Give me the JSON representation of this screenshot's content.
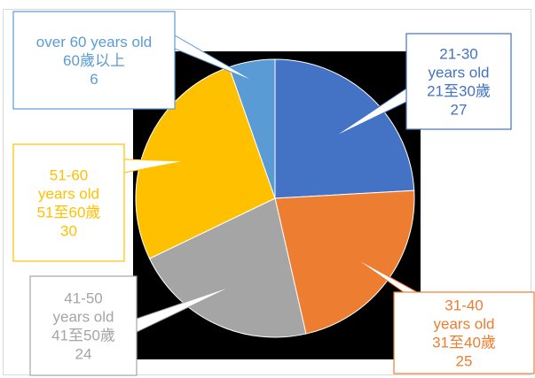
{
  "chart_data": {
    "type": "pie",
    "title": "",
    "start_angle_deg": 0,
    "direction": "clockwise",
    "slices": [
      {
        "label_lines": [
          "21-30",
          "years old",
          "21至30歲"
        ],
        "value": 27,
        "color": "#4472c4"
      },
      {
        "label_lines": [
          "31-40",
          "years old",
          "31至40歲"
        ],
        "value": 25,
        "color": "#ed7d31"
      },
      {
        "label_lines": [
          "41-50",
          "years old",
          "41至50歲"
        ],
        "value": 24,
        "color": "#a5a5a5"
      },
      {
        "label_lines": [
          "51-60",
          "years old",
          "51至60歲"
        ],
        "value": 30,
        "color": "#ffc000"
      },
      {
        "label_lines": [
          "over 60 years old",
          "60歲以上"
        ],
        "value": 6,
        "color": "#5b9bd5"
      }
    ]
  }
}
